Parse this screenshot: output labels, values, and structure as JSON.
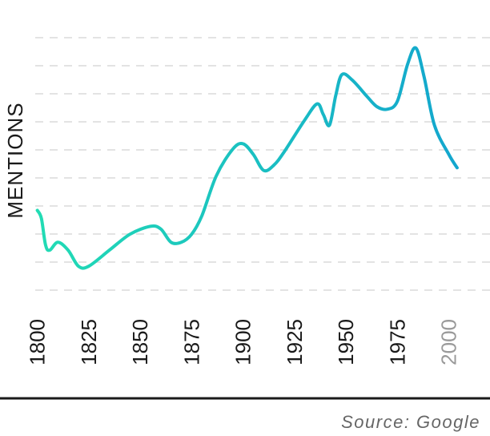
{
  "chart_data": {
    "type": "line",
    "ylabel": "MENTIONS",
    "x_ticks": [
      {
        "label": "1800",
        "value": 1800
      },
      {
        "label": "1825",
        "value": 1825
      },
      {
        "label": "1850",
        "value": 1850
      },
      {
        "label": "1875",
        "value": 1875
      },
      {
        "label": "1900",
        "value": 1900
      },
      {
        "label": "1925",
        "value": 1925
      },
      {
        "label": "1950",
        "value": 1950
      },
      {
        "label": "1975",
        "value": 1975
      },
      {
        "label": "2000",
        "value": 2000
      }
    ],
    "xlim": [
      1799,
      2020
    ],
    "ylim": [
      0,
      10
    ],
    "grid": "horizontal-dashed",
    "gradient_colors": [
      "#22dcb4",
      "#12a2d0"
    ],
    "points": [
      {
        "x": 1800,
        "y": 3.3
      },
      {
        "x": 1802,
        "y": 3.0
      },
      {
        "x": 1804,
        "y": 2.0
      },
      {
        "x": 1806,
        "y": 1.8
      },
      {
        "x": 1810,
        "y": 2.1
      },
      {
        "x": 1815,
        "y": 1.8
      },
      {
        "x": 1820,
        "y": 1.2
      },
      {
        "x": 1825,
        "y": 1.2
      },
      {
        "x": 1835,
        "y": 1.8
      },
      {
        "x": 1845,
        "y": 2.4
      },
      {
        "x": 1855,
        "y": 2.7
      },
      {
        "x": 1860,
        "y": 2.6
      },
      {
        "x": 1865,
        "y": 2.1
      },
      {
        "x": 1870,
        "y": 2.1
      },
      {
        "x": 1875,
        "y": 2.4
      },
      {
        "x": 1880,
        "y": 3.1
      },
      {
        "x": 1887,
        "y": 4.6
      },
      {
        "x": 1895,
        "y": 5.6
      },
      {
        "x": 1900,
        "y": 5.8
      },
      {
        "x": 1905,
        "y": 5.4
      },
      {
        "x": 1910,
        "y": 4.8
      },
      {
        "x": 1915,
        "y": 5.0
      },
      {
        "x": 1920,
        "y": 5.5
      },
      {
        "x": 1930,
        "y": 6.7
      },
      {
        "x": 1936,
        "y": 7.3
      },
      {
        "x": 1939,
        "y": 6.9
      },
      {
        "x": 1942,
        "y": 6.5
      },
      {
        "x": 1945,
        "y": 7.6
      },
      {
        "x": 1948,
        "y": 8.4
      },
      {
        "x": 1953,
        "y": 8.2
      },
      {
        "x": 1960,
        "y": 7.6
      },
      {
        "x": 1965,
        "y": 7.2
      },
      {
        "x": 1970,
        "y": 7.1
      },
      {
        "x": 1975,
        "y": 7.4
      },
      {
        "x": 1980,
        "y": 8.8
      },
      {
        "x": 1984,
        "y": 9.4
      },
      {
        "x": 1988,
        "y": 8.3
      },
      {
        "x": 1993,
        "y": 6.5
      },
      {
        "x": 2000,
        "y": 5.4
      },
      {
        "x": 2004,
        "y": 4.9
      }
    ]
  },
  "source": "Source: Google"
}
